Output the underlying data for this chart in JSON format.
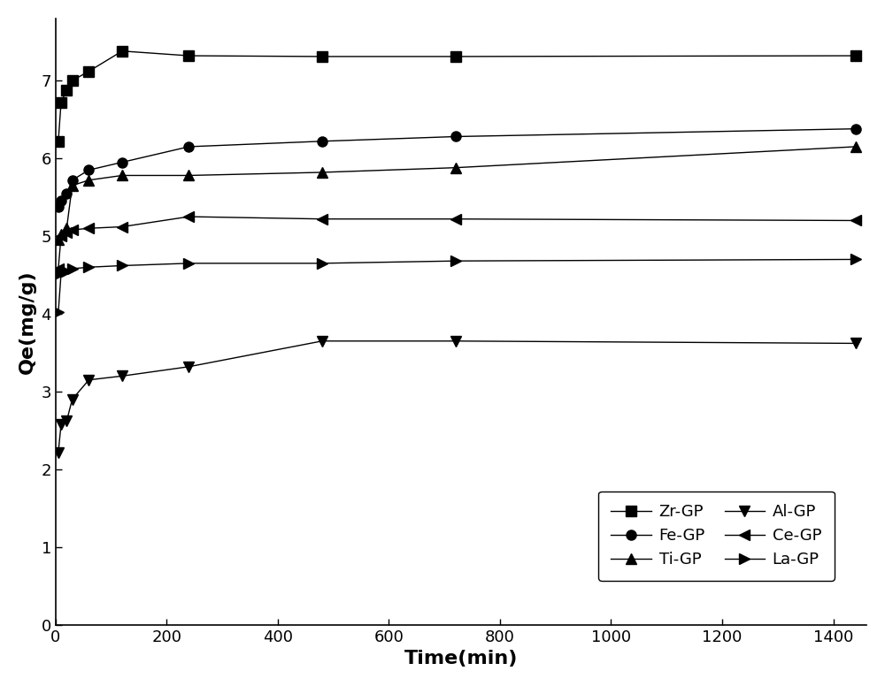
{
  "series": [
    {
      "name": "Zr-GP",
      "x": [
        5,
        10,
        20,
        30,
        60,
        120,
        240,
        480,
        720,
        1440
      ],
      "y": [
        6.22,
        6.72,
        6.88,
        7.0,
        7.12,
        7.38,
        7.32,
        7.31,
        7.31,
        7.32
      ],
      "marker": "s",
      "label": "Zr-GP"
    },
    {
      "name": "Fe-GP",
      "x": [
        5,
        10,
        20,
        30,
        60,
        120,
        240,
        480,
        720,
        1440
      ],
      "y": [
        5.38,
        5.45,
        5.55,
        5.72,
        5.85,
        5.95,
        6.15,
        6.22,
        6.28,
        6.38
      ],
      "marker": "o",
      "label": "Fe-GP"
    },
    {
      "name": "Ti-GP",
      "x": [
        5,
        10,
        20,
        30,
        60,
        120,
        240,
        480,
        720,
        1440
      ],
      "y": [
        4.95,
        5.02,
        5.1,
        5.65,
        5.72,
        5.78,
        5.78,
        5.82,
        5.88,
        6.15
      ],
      "marker": "^",
      "label": "Ti-GP"
    },
    {
      "name": "Ce-GP",
      "x": [
        5,
        10,
        20,
        30,
        60,
        120,
        240,
        480,
        720,
        1440
      ],
      "y": [
        4.58,
        5.0,
        5.05,
        5.08,
        5.1,
        5.12,
        5.25,
        5.22,
        5.22,
        5.2
      ],
      "marker": "<",
      "label": "Ce-GP"
    },
    {
      "name": "La-GP",
      "x": [
        5,
        10,
        20,
        30,
        60,
        120,
        240,
        480,
        720,
        1440
      ],
      "y": [
        4.02,
        4.52,
        4.55,
        4.58,
        4.6,
        4.62,
        4.65,
        4.65,
        4.68,
        4.7
      ],
      "marker": ">",
      "label": "La-GP"
    },
    {
      "name": "Al-GP",
      "x": [
        5,
        10,
        20,
        30,
        60,
        120,
        240,
        480,
        720,
        1440
      ],
      "y": [
        2.22,
        2.58,
        2.62,
        2.9,
        3.15,
        3.2,
        3.32,
        3.65,
        3.65,
        3.62
      ],
      "marker": "v",
      "label": "Al-GP"
    }
  ],
  "legend_order": [
    "Zr-GP",
    "Fe-GP",
    "Ti-GP",
    "Al-GP",
    "Ce-GP",
    "La-GP"
  ],
  "xlabel": "Time(min)",
  "ylabel": "Qe(mg/g)",
  "xlim": [
    0,
    1460
  ],
  "ylim": [
    0,
    7.8
  ],
  "xticks": [
    0,
    200,
    400,
    600,
    800,
    1000,
    1200,
    1400
  ],
  "yticks": [
    0,
    1,
    2,
    3,
    4,
    5,
    6,
    7
  ],
  "figsize": [
    10.0,
    7.76
  ],
  "dpi": 100
}
